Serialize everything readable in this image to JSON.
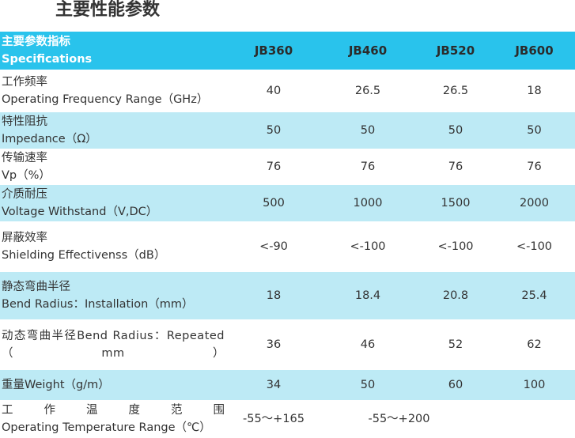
{
  "page": {
    "title": "主要性能参数"
  },
  "table": {
    "header": {
      "label_zh": "主要参数指标",
      "label_en": "Specifications",
      "models": [
        "JB360",
        "JB460",
        "JB520",
        "JB600"
      ]
    },
    "rows": [
      {
        "label_zh": "工作频率",
        "label_en": "Operating Frequency Range（GHz）",
        "values": [
          "40",
          "26.5",
          "26.5",
          "18"
        ]
      },
      {
        "label_zh": "特性阻抗",
        "label_en": "Impedance（Ω）",
        "values": [
          "50",
          "50",
          "50",
          "50"
        ]
      },
      {
        "label_zh": "传输速率",
        "label_en": "Vp（%）",
        "values": [
          "76",
          "76",
          "76",
          "76"
        ]
      },
      {
        "label_zh": "介质耐压",
        "label_en": "Voltage Withstand（V,DC）",
        "values": [
          "500",
          "1000",
          "1500",
          "2000"
        ]
      },
      {
        "label_zh": "屏蔽效率",
        "label_en": "Shielding Effectivenss（dB）",
        "values": [
          "<-90",
          "<-100",
          "<-100",
          "<-100"
        ]
      },
      {
        "label_zh": "静态弯曲半径",
        "label_en": "Bend Radius：Installation（mm）",
        "values": [
          "18",
          "18.4",
          "20.8",
          "25.4"
        ]
      },
      {
        "label_text": "动态弯曲半径Bend Radius：Repeated（mm）",
        "values": [
          "36",
          "46",
          "52",
          "62"
        ]
      },
      {
        "label_text": "重量Weight（g/m）",
        "values": [
          "34",
          "50",
          "60",
          "100"
        ]
      },
      {
        "label_zh": "工作温度范围",
        "label_en": "Operating Temperature Range（℃）",
        "values": [
          "-55～+165",
          "-55～+200"
        ]
      }
    ]
  },
  "colors": {
    "header_bg": "#29c3ec",
    "alt_row_bg": "#bdeaf5",
    "text": "#333333"
  }
}
